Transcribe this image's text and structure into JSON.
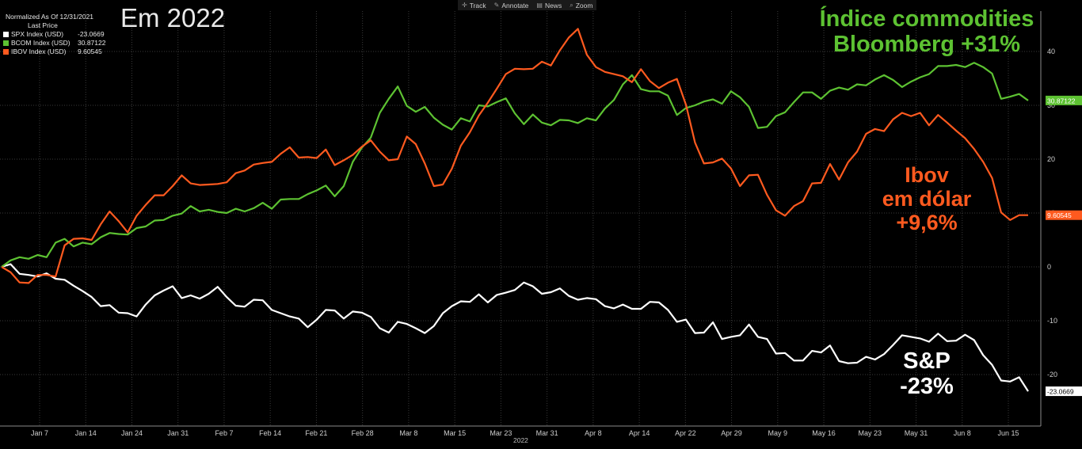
{
  "toolbar": {
    "items": [
      {
        "label": "Track",
        "icon": "crosshair-icon"
      },
      {
        "label": "Annotate",
        "icon": "pencil-icon"
      },
      {
        "label": "News",
        "icon": "news-icon"
      },
      {
        "label": "Zoom",
        "icon": "magnifier-icon"
      }
    ]
  },
  "heading": "Em 2022",
  "legend": {
    "header": "Normalized As Of 12/31/2021",
    "subheader": "Last Price",
    "entries": [
      {
        "name": "SPX Index (USD)",
        "value": "-23.0669",
        "color": "#ffffff"
      },
      {
        "name": "BCOM Index (USD)",
        "value": "30.87122",
        "color": "#5dc232"
      },
      {
        "name": "IBOV Index (USD)",
        "value": "9.60545",
        "color": "#ff5a1f"
      }
    ]
  },
  "annotations": {
    "bcom": [
      "Índice commodities",
      "Bloomberg +31%"
    ],
    "ibov": [
      "Ibov",
      "em dólar",
      "+9,6%"
    ],
    "spx": [
      "S&P",
      "-23%"
    ]
  },
  "year_label": "2022",
  "chart_data": {
    "type": "line",
    "title": "",
    "x_ticks": [
      "Jan 7",
      "Jan 14",
      "Jan 24",
      "Jan 31",
      "Feb 7",
      "Feb 14",
      "Feb 21",
      "Feb 28",
      "Mar 8",
      "Mar 15",
      "Mar 23",
      "Mar 31",
      "Apr 8",
      "Apr 14",
      "Apr 22",
      "Apr 29",
      "May 9",
      "May 16",
      "May 23",
      "May 31",
      "Jun 8",
      "Jun 15"
    ],
    "y_ticks": [
      "-20",
      "-10",
      "0",
      "10",
      "20",
      "30",
      "40"
    ],
    "ylim": [
      -30,
      46
    ],
    "grid": true,
    "series": [
      {
        "name": "SPX Index (USD)",
        "color": "#ffffff",
        "last_label": "-23.0669",
        "values": [
          0,
          0.5,
          -1.3,
          -1.5,
          -1.8,
          -1.2,
          -2.2,
          -2.4,
          -3.5,
          -4.5,
          -5.6,
          -7.3,
          -7.1,
          -8.5,
          -8.6,
          -9.2,
          -7.0,
          -5.3,
          -4.4,
          -3.6,
          -5.8,
          -5.3,
          -5.9,
          -5.0,
          -3.7,
          -5.6,
          -7.2,
          -7.4,
          -6.1,
          -6.2,
          -8.0,
          -8.6,
          -9.2,
          -9.6,
          -11.2,
          -9.8,
          -8.0,
          -8.1,
          -9.6,
          -8.3,
          -8.5,
          -9.3,
          -11.4,
          -12.2,
          -10.2,
          -10.6,
          -11.4,
          -12.3,
          -11.0,
          -8.6,
          -7.3,
          -6.4,
          -6.5,
          -5.1,
          -6.6,
          -5.2,
          -4.8,
          -4.3,
          -2.9,
          -3.6,
          -5.0,
          -4.7,
          -4.0,
          -5.4,
          -6.1,
          -5.8,
          -6.0,
          -7.3,
          -7.7,
          -7.0,
          -7.8,
          -7.8,
          -6.5,
          -6.6,
          -8.0,
          -10.2,
          -9.8,
          -12.3,
          -12.2,
          -10.3,
          -13.4,
          -13.0,
          -12.7,
          -10.7,
          -13.0,
          -13.4,
          -16.1,
          -16.0,
          -17.4,
          -17.4,
          -15.6,
          -15.9,
          -14.6,
          -17.5,
          -17.9,
          -17.8,
          -16.7,
          -17.2,
          -16.2,
          -14.5,
          -12.7,
          -13.0,
          -13.3,
          -13.9,
          -12.4,
          -13.8,
          -13.7,
          -12.6,
          -13.6,
          -16.4,
          -18.2,
          -21.1,
          -21.3,
          -20.5,
          -23.1
        ]
      },
      {
        "name": "BCOM Index (USD)",
        "color": "#5dc232",
        "last_label": "30.87122",
        "values": [
          0,
          1.2,
          1.8,
          1.5,
          2.2,
          1.8,
          4.5,
          5.2,
          3.8,
          4.5,
          4.2,
          5.5,
          6.3,
          6.1,
          6.0,
          7.2,
          7.5,
          8.6,
          8.7,
          9.5,
          9.9,
          11.3,
          10.3,
          10.6,
          10.2,
          10.0,
          10.8,
          10.3,
          10.9,
          11.9,
          10.8,
          12.5,
          12.6,
          12.6,
          13.5,
          14.2,
          15.1,
          13.1,
          15.0,
          19.5,
          22.1,
          24.0,
          28.6,
          31.2,
          33.5,
          29.9,
          28.8,
          29.7,
          27.7,
          26.4,
          25.5,
          27.6,
          27.0,
          30.0,
          29.8,
          30.6,
          31.3,
          28.5,
          26.5,
          28.3,
          26.8,
          26.3,
          27.3,
          27.2,
          26.7,
          27.6,
          27.2,
          29.4,
          31.0,
          33.9,
          35.6,
          33.0,
          32.6,
          32.6,
          31.8,
          28.2,
          29.5,
          30.0,
          30.7,
          31.1,
          30.3,
          32.6,
          31.5,
          29.7,
          25.8,
          26.0,
          28.0,
          28.7,
          30.6,
          32.4,
          32.4,
          31.2,
          32.7,
          33.3,
          32.9,
          33.9,
          33.7,
          34.8,
          35.6,
          34.7,
          33.4,
          34.4,
          35.2,
          35.8,
          37.3,
          37.3,
          37.5,
          37.1,
          37.9,
          37.1,
          35.9,
          31.2,
          31.6,
          32.1,
          30.9
        ]
      },
      {
        "name": "IBOV Index (USD)",
        "color": "#ff5a1f",
        "last_label": "9.60545",
        "values": [
          0,
          -1.0,
          -2.9,
          -3.0,
          -1.5,
          -1.5,
          -1.8,
          4.0,
          5.2,
          5.3,
          5.0,
          7.9,
          10.3,
          8.5,
          6.4,
          9.5,
          11.5,
          13.3,
          13.3,
          15.0,
          17.0,
          15.5,
          15.2,
          15.3,
          15.4,
          15.7,
          17.4,
          17.9,
          19.0,
          19.3,
          19.5,
          21.0,
          22.2,
          20.3,
          20.4,
          20.2,
          21.8,
          18.9,
          19.8,
          20.8,
          22.3,
          23.5,
          21.4,
          19.8,
          20.0,
          24.2,
          22.8,
          19.2,
          15.0,
          15.3,
          18.2,
          22.5,
          25.0,
          28.1,
          30.5,
          33.1,
          35.8,
          36.8,
          36.7,
          36.8,
          38.1,
          37.4,
          40.2,
          42.6,
          44.2,
          39.4,
          37.1,
          36.2,
          35.8,
          35.4,
          34.3,
          36.7,
          34.5,
          33.2,
          34.2,
          34.9,
          30.1,
          23.1,
          19.2,
          19.4,
          20.1,
          18.3,
          15.0,
          17.0,
          17.1,
          13.4,
          10.5,
          9.5,
          11.3,
          12.2,
          15.5,
          15.6,
          19.1,
          16.2,
          19.4,
          21.4,
          24.7,
          25.6,
          25.2,
          27.4,
          28.6,
          28.0,
          28.6,
          26.3,
          28.2,
          26.8,
          25.3,
          23.9,
          21.9,
          19.5,
          16.5,
          10.1,
          8.7,
          9.6,
          9.6
        ]
      }
    ]
  }
}
